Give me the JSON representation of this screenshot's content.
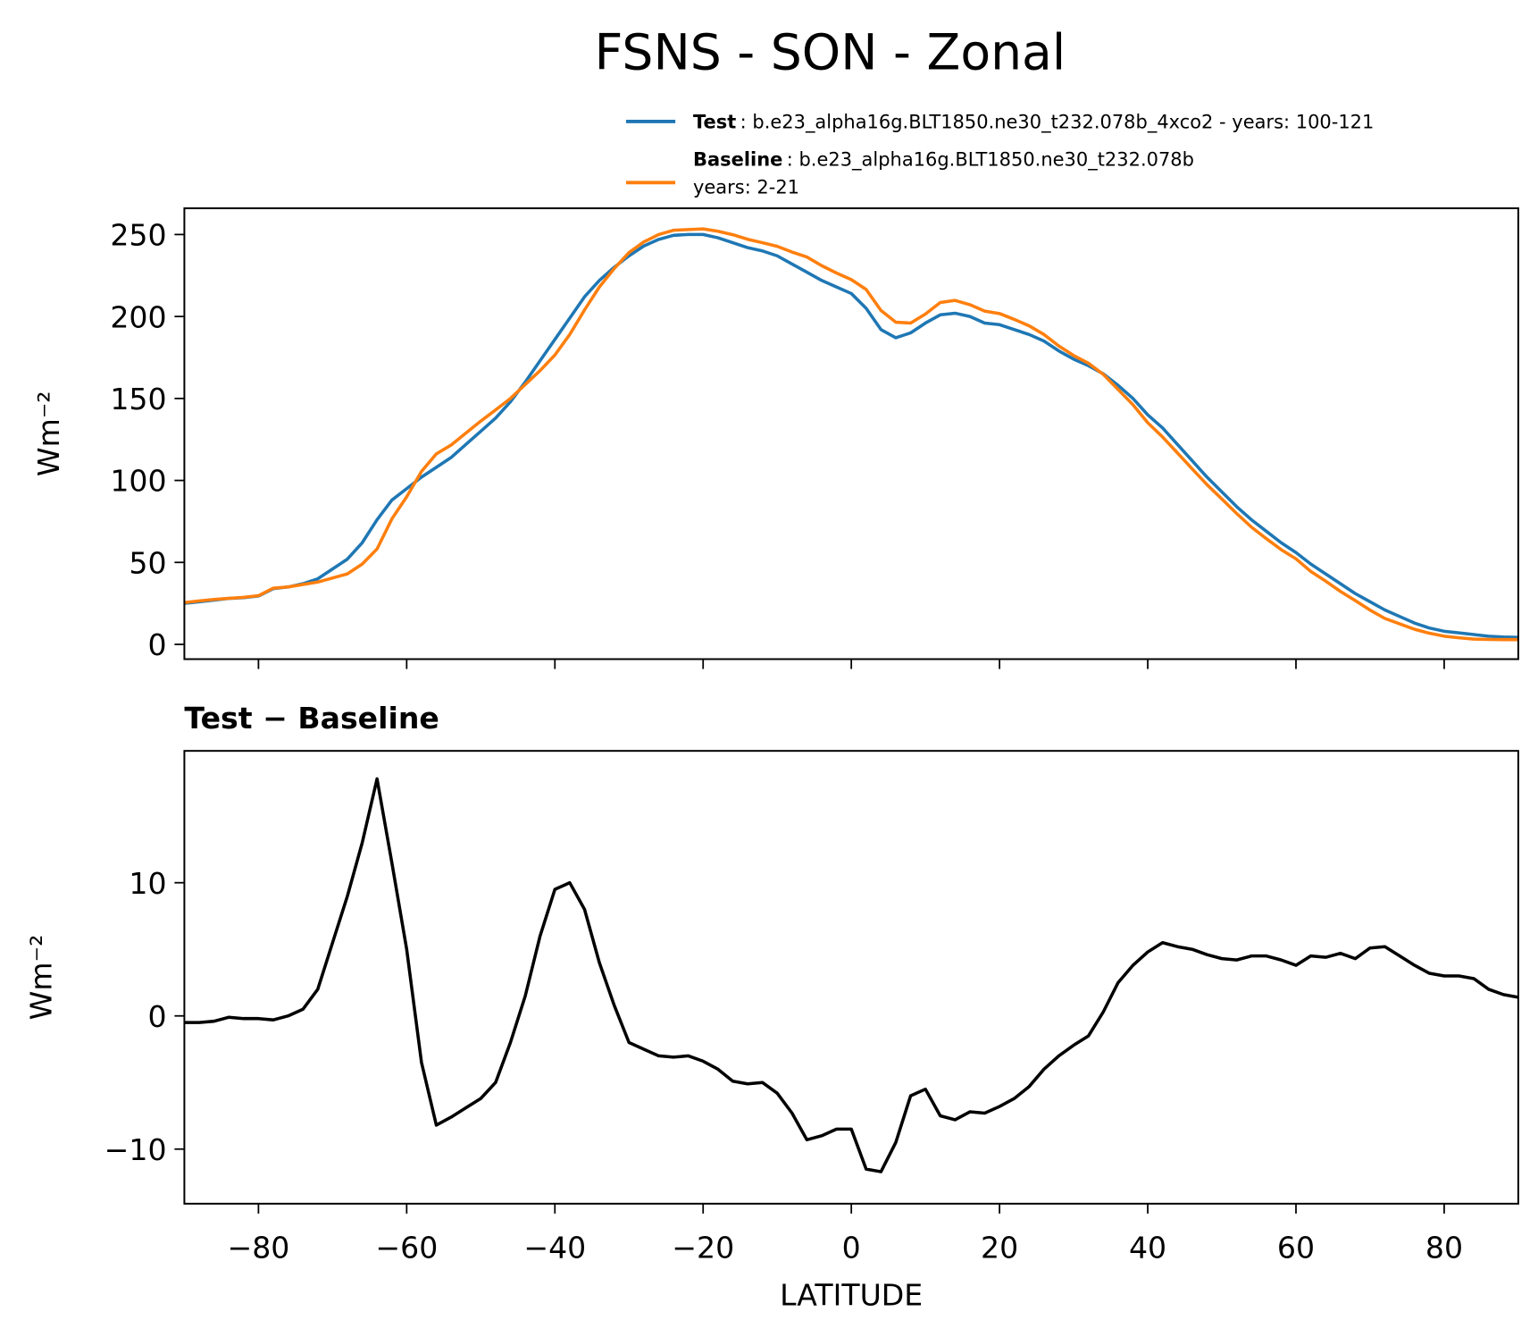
{
  "title": "FSNS - SON - Zonal",
  "chart_data": [
    {
      "type": "line",
      "ylabel": "Wm⁻²",
      "x": [
        -90,
        -88,
        -86,
        -84,
        -82,
        -80,
        -78,
        -76,
        -74,
        -72,
        -70,
        -68,
        -66,
        -64,
        -62,
        -60,
        -58,
        -56,
        -54,
        -52,
        -50,
        -48,
        -46,
        -44,
        -42,
        -40,
        -38,
        -36,
        -34,
        -32,
        -30,
        -28,
        -26,
        -24,
        -22,
        -20,
        -18,
        -16,
        -14,
        -12,
        -10,
        -8,
        -6,
        -4,
        -2,
        0,
        2,
        4,
        6,
        8,
        10,
        12,
        14,
        16,
        18,
        20,
        22,
        24,
        26,
        28,
        30,
        32,
        34,
        36,
        38,
        40,
        42,
        44,
        46,
        48,
        50,
        52,
        54,
        56,
        58,
        60,
        62,
        64,
        66,
        68,
        70,
        72,
        74,
        76,
        78,
        80,
        82,
        84,
        86,
        88,
        90
      ],
      "series": [
        {
          "name": "Test",
          "legend_lines": [
            ": b.e23_alpha16g.BLT1850.ne30_t232.078b_4xco2 - years: 100-121"
          ],
          "color": "#1f77b4",
          "values": [
            25,
            26,
            27,
            28,
            28.5,
            29.5,
            34,
            35,
            37,
            40,
            46,
            52,
            62,
            76,
            88,
            95,
            102,
            108,
            114,
            122,
            130,
            138,
            148,
            160,
            173,
            186,
            199,
            212,
            222,
            230,
            237,
            243,
            247,
            249.5,
            250,
            250,
            248,
            245,
            242,
            240,
            237,
            232,
            227,
            222,
            218,
            214,
            205,
            192,
            187,
            190,
            196,
            201,
            202,
            200,
            196,
            195,
            192,
            189,
            185,
            179,
            174,
            170,
            165,
            158,
            150,
            140,
            132,
            122,
            112,
            102,
            93,
            84,
            76,
            69,
            62,
            56,
            49,
            43,
            37,
            31,
            26,
            21,
            17,
            13,
            10,
            8,
            7,
            6,
            5,
            4.5,
            4.3
          ]
        },
        {
          "name": "Baseline",
          "legend_lines": [
            ": b.e23_alpha16g.BLT1850.ne30_t232.078b",
            "years: 2-21"
          ],
          "color": "#ff7f0e",
          "values": [
            25.5,
            26.5,
            27.4,
            28.1,
            28.7,
            29.7,
            34.3,
            35.0,
            36.5,
            38.0,
            40.5,
            43.0,
            49.0,
            58.2,
            76.5,
            90.0,
            105.5,
            116.2,
            121.6,
            128.9,
            136.2,
            143.0,
            150.0,
            158.5,
            167.0,
            176.5,
            189.0,
            204.0,
            218.0,
            229.2,
            239.0,
            245.5,
            250.0,
            252.6,
            253.0,
            253.4,
            252.0,
            249.9,
            247.1,
            245.0,
            242.8,
            239.3,
            236.3,
            231.0,
            226.5,
            222.5,
            216.5,
            203.7,
            196.5,
            196.0,
            201.5,
            208.5,
            209.8,
            207.2,
            203.3,
            201.8,
            198.2,
            194.3,
            189.0,
            182.0,
            176.2,
            171.5,
            164.7,
            155.5,
            146.2,
            135.2,
            126.5,
            116.8,
            107.0,
            97.4,
            88.7,
            79.8,
            71.5,
            64.5,
            57.8,
            52.2,
            44.5,
            38.6,
            32.3,
            26.7,
            20.9,
            15.8,
            12.5,
            9.2,
            6.8,
            5.0,
            4.0,
            3.2,
            3.0,
            2.9,
            2.9
          ]
        }
      ],
      "xlim": [
        -90,
        90
      ],
      "xticks": [
        -80,
        -60,
        -40,
        -20,
        0,
        20,
        40,
        60,
        80
      ],
      "ylim": [
        -9,
        266
      ],
      "yticks": [
        0,
        50,
        100,
        150,
        200,
        250
      ]
    },
    {
      "type": "line",
      "title": "Test − Baseline",
      "ylabel": "Wm⁻²",
      "xlabel": "LATITUDE",
      "x": [
        -90,
        -88,
        -86,
        -84,
        -82,
        -80,
        -78,
        -76,
        -74,
        -72,
        -70,
        -68,
        -66,
        -64,
        -62,
        -60,
        -58,
        -56,
        -54,
        -52,
        -50,
        -48,
        -46,
        -44,
        -42,
        -40,
        -38,
        -36,
        -34,
        -32,
        -30,
        -28,
        -26,
        -24,
        -22,
        -20,
        -18,
        -16,
        -14,
        -12,
        -10,
        -8,
        -6,
        -4,
        -2,
        0,
        2,
        4,
        6,
        8,
        10,
        12,
        14,
        16,
        18,
        20,
        22,
        24,
        26,
        28,
        30,
        32,
        34,
        36,
        38,
        40,
        42,
        44,
        46,
        48,
        50,
        52,
        54,
        56,
        58,
        60,
        62,
        64,
        66,
        68,
        70,
        72,
        74,
        76,
        78,
        80,
        82,
        84,
        86,
        88,
        90
      ],
      "series": [
        {
          "color": "#000000",
          "values": [
            -0.5,
            -0.5,
            -0.4,
            -0.1,
            -0.2,
            -0.2,
            -0.3,
            0.0,
            0.5,
            2.0,
            5.5,
            9.0,
            13.0,
            17.8,
            11.5,
            5.0,
            -3.5,
            -8.2,
            -7.6,
            -6.9,
            -6.2,
            -5.0,
            -2.0,
            1.5,
            6.0,
            9.5,
            10.0,
            8.0,
            4.0,
            0.8,
            -2.0,
            -2.5,
            -3.0,
            -3.1,
            -3.0,
            -3.4,
            -4.0,
            -4.9,
            -5.1,
            -5.0,
            -5.8,
            -7.3,
            -9.3,
            -9.0,
            -8.5,
            -8.5,
            -11.5,
            -11.7,
            -9.5,
            -6.0,
            -5.5,
            -7.5,
            -7.8,
            -7.2,
            -7.3,
            -6.8,
            -6.2,
            -5.3,
            -4.0,
            -3.0,
            -2.2,
            -1.5,
            0.3,
            2.5,
            3.8,
            4.8,
            5.5,
            5.2,
            5.0,
            4.6,
            4.3,
            4.2,
            4.5,
            4.5,
            4.2,
            3.8,
            4.5,
            4.4,
            4.7,
            4.3,
            5.1,
            5.2,
            4.5,
            3.8,
            3.2,
            3.0,
            3.0,
            2.8,
            2.0,
            1.6,
            1.4
          ]
        }
      ],
      "xlim": [
        -90,
        90
      ],
      "xticks": [
        {
          "value": -80,
          "label": "−80"
        },
        {
          "value": -60,
          "label": "−60"
        },
        {
          "value": -40,
          "label": "−40"
        },
        {
          "value": -20,
          "label": "−20"
        },
        0,
        20,
        40,
        60,
        80
      ],
      "ylim": [
        -14.1,
        19.9
      ],
      "yticks": [
        {
          "value": -10,
          "label": "−10"
        },
        0,
        10
      ]
    }
  ]
}
